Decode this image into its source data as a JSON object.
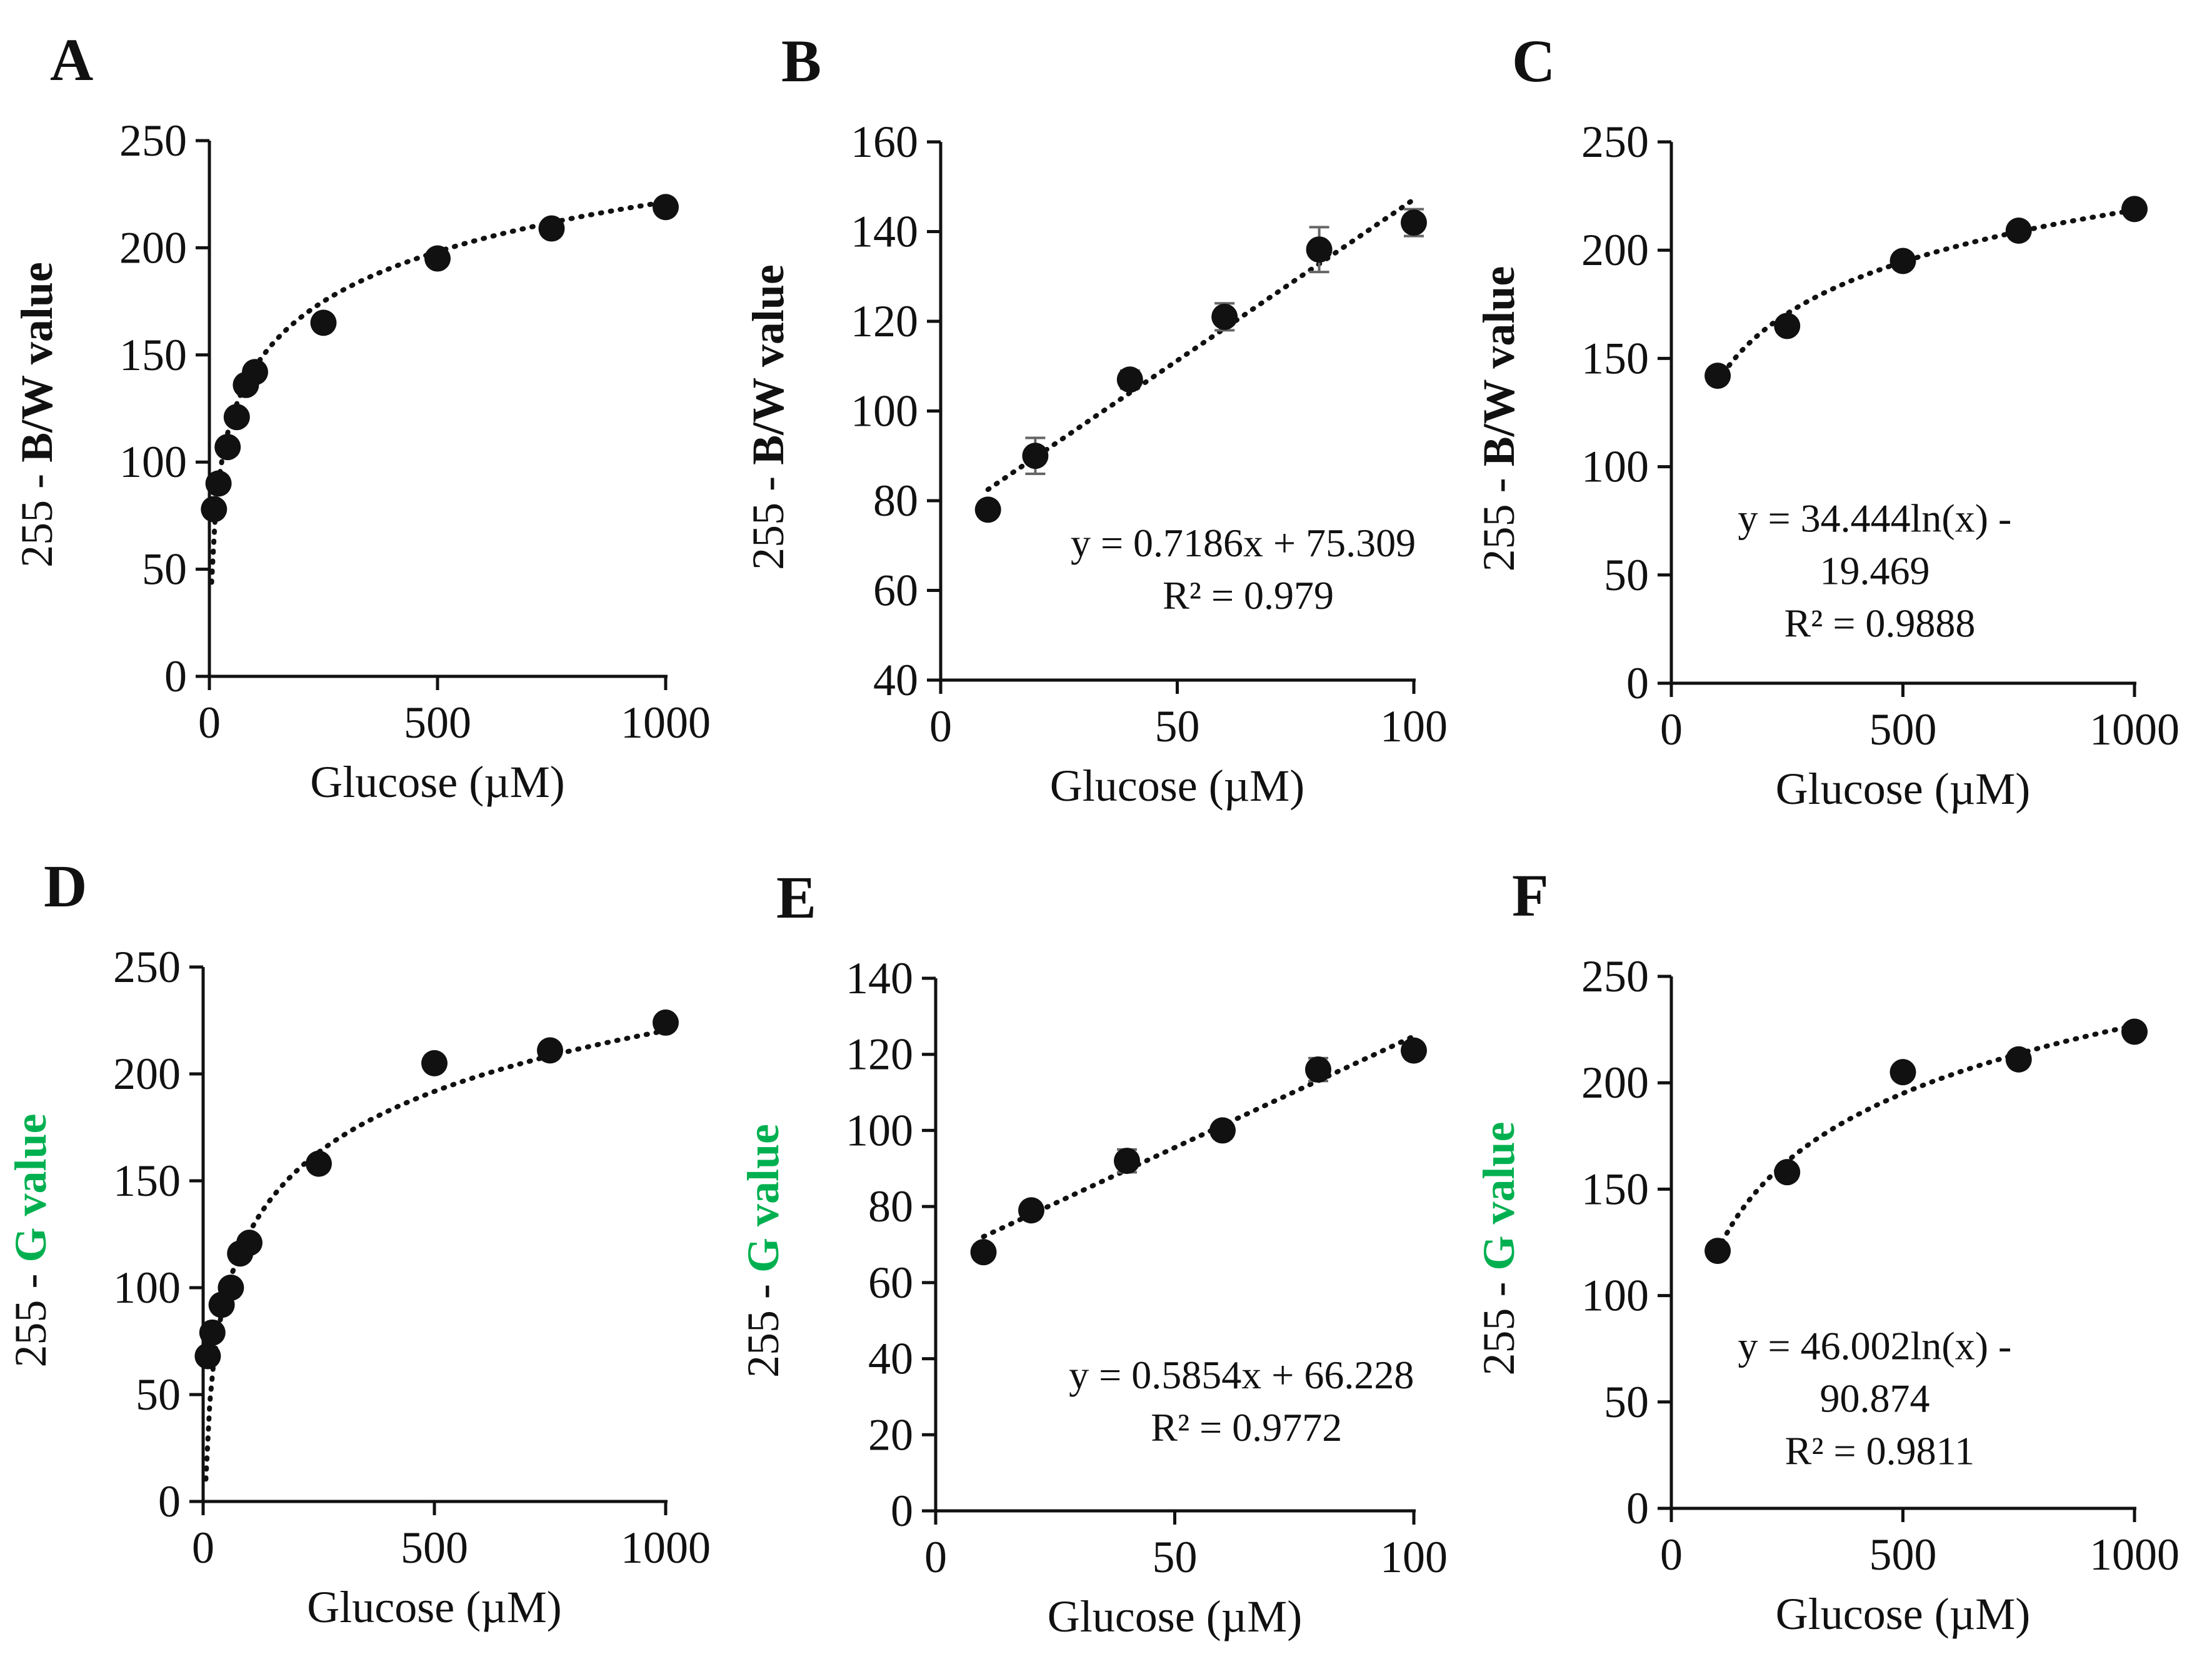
{
  "figure": {
    "colors": {
      "ink": "#111111",
      "highlight": "#00b050",
      "error_bar": "#666666"
    }
  },
  "chart_data": [
    {
      "panel": "A",
      "type": "scatter",
      "xlabel": "Glucose (µM)",
      "ylabel": {
        "prefix": "255 - ",
        "highlight": "B/W value",
        "highlight_color": "ink"
      },
      "xlim": [
        0,
        1000
      ],
      "ylim": [
        0,
        250
      ],
      "xticks": [
        0,
        500,
        1000
      ],
      "yticks": [
        0,
        50,
        100,
        150,
        200,
        250
      ],
      "points": [
        {
          "x": 10,
          "y": 78,
          "err": 0
        },
        {
          "x": 20,
          "y": 90,
          "err": 0
        },
        {
          "x": 40,
          "y": 107,
          "err": 0
        },
        {
          "x": 60,
          "y": 121,
          "err": 0
        },
        {
          "x": 80,
          "y": 136,
          "err": 0
        },
        {
          "x": 100,
          "y": 142,
          "err": 0
        },
        {
          "x": 250,
          "y": 165,
          "err": 0
        },
        {
          "x": 500,
          "y": 195,
          "err": 0
        },
        {
          "x": 750,
          "y": 209,
          "err": 0
        },
        {
          "x": 1000,
          "y": 219,
          "err": 0
        }
      ],
      "trendline": {
        "kind": "log",
        "a": 33.5,
        "b": -10,
        "x_from": 5,
        "x_to": 1000
      },
      "equation_lines": []
    },
    {
      "panel": "B",
      "type": "scatter",
      "xlabel": "Glucose (µM)",
      "ylabel": {
        "prefix": "255 - ",
        "highlight": "B/W value",
        "highlight_color": "ink"
      },
      "xlim": [
        0,
        100
      ],
      "ylim": [
        40,
        160
      ],
      "xticks": [
        0,
        50,
        100
      ],
      "yticks": [
        40,
        60,
        80,
        100,
        120,
        140,
        160
      ],
      "points": [
        {
          "x": 10,
          "y": 78,
          "err": 0
        },
        {
          "x": 20,
          "y": 90,
          "err": 4
        },
        {
          "x": 40,
          "y": 107,
          "err": 2
        },
        {
          "x": 60,
          "y": 121,
          "err": 3
        },
        {
          "x": 80,
          "y": 136,
          "err": 5
        },
        {
          "x": 100,
          "y": 142,
          "err": 3
        }
      ],
      "trendline": {
        "kind": "linear",
        "a": 0.7186,
        "b": 75.309,
        "x_from": 10,
        "x_to": 100
      },
      "equation_lines": [
        "y = 0.7186x + 75.309",
        "R² = 0.979"
      ]
    },
    {
      "panel": "C",
      "type": "scatter",
      "xlabel": "Glucose (µM)",
      "ylabel": {
        "prefix": "255 - ",
        "highlight": "B/W value",
        "highlight_color": "ink"
      },
      "xlim": [
        0,
        1000
      ],
      "ylim": [
        0,
        250
      ],
      "xticks": [
        0,
        500,
        1000
      ],
      "yticks": [
        0,
        50,
        100,
        150,
        200,
        250
      ],
      "points": [
        {
          "x": 100,
          "y": 142,
          "err": 0
        },
        {
          "x": 250,
          "y": 165,
          "err": 0
        },
        {
          "x": 500,
          "y": 195,
          "err": 0
        },
        {
          "x": 750,
          "y": 209,
          "err": 0
        },
        {
          "x": 1000,
          "y": 219,
          "err": 0
        }
      ],
      "trendline": {
        "kind": "log",
        "a": 34.444,
        "b": -19.469,
        "x_from": 100,
        "x_to": 1000
      },
      "equation_lines": [
        "y = 34.444ln(x) -",
        "19.469",
        "R² = 0.9888"
      ]
    },
    {
      "panel": "D",
      "type": "scatter",
      "xlabel": "Glucose (µM)",
      "ylabel": {
        "prefix": "255 - ",
        "highlight": "G value",
        "highlight_color": "highlight"
      },
      "xlim": [
        0,
        1000
      ],
      "ylim": [
        0,
        250
      ],
      "xticks": [
        0,
        500,
        1000
      ],
      "yticks": [
        0,
        50,
        100,
        150,
        200,
        250
      ],
      "points": [
        {
          "x": 10,
          "y": 68,
          "err": 0
        },
        {
          "x": 20,
          "y": 79,
          "err": 0
        },
        {
          "x": 40,
          "y": 92,
          "err": 0
        },
        {
          "x": 60,
          "y": 100,
          "err": 0
        },
        {
          "x": 80,
          "y": 116,
          "err": 0
        },
        {
          "x": 100,
          "y": 121,
          "err": 0
        },
        {
          "x": 250,
          "y": 158,
          "err": 0
        },
        {
          "x": 500,
          "y": 205,
          "err": 0
        },
        {
          "x": 750,
          "y": 211,
          "err": 0
        },
        {
          "x": 1000,
          "y": 224,
          "err": 0
        }
      ],
      "trendline": {
        "kind": "log",
        "a": 41,
        "b": -63,
        "x_from": 6,
        "x_to": 1000
      },
      "equation_lines": []
    },
    {
      "panel": "E",
      "type": "scatter",
      "xlabel": "Glucose (µM)",
      "ylabel": {
        "prefix": "255 - ",
        "highlight": "G value",
        "highlight_color": "highlight"
      },
      "xlim": [
        0,
        100
      ],
      "ylim": [
        0,
        140
      ],
      "xticks": [
        0,
        50,
        100
      ],
      "yticks": [
        0,
        20,
        40,
        60,
        80,
        100,
        120,
        140
      ],
      "points": [
        {
          "x": 10,
          "y": 68,
          "err": 2
        },
        {
          "x": 20,
          "y": 79,
          "err": 0
        },
        {
          "x": 40,
          "y": 92,
          "err": 3
        },
        {
          "x": 60,
          "y": 100,
          "err": 2
        },
        {
          "x": 80,
          "y": 116,
          "err": 3
        },
        {
          "x": 100,
          "y": 121,
          "err": 2
        }
      ],
      "trendline": {
        "kind": "linear",
        "a": 0.5854,
        "b": 66.228,
        "x_from": 10,
        "x_to": 100
      },
      "equation_lines": [
        "y = 0.5854x + 66.228",
        "R² = 0.9772"
      ]
    },
    {
      "panel": "F",
      "type": "scatter",
      "xlabel": "Glucose (µM)",
      "ylabel": {
        "prefix": "255 - ",
        "highlight": "G value",
        "highlight_color": "highlight"
      },
      "xlim": [
        0,
        1000
      ],
      "ylim": [
        0,
        250
      ],
      "xticks": [
        0,
        500,
        1000
      ],
      "yticks": [
        0,
        50,
        100,
        150,
        200,
        250
      ],
      "points": [
        {
          "x": 100,
          "y": 121,
          "err": 0
        },
        {
          "x": 250,
          "y": 158,
          "err": 0
        },
        {
          "x": 500,
          "y": 205,
          "err": 0
        },
        {
          "x": 750,
          "y": 211,
          "err": 0
        },
        {
          "x": 1000,
          "y": 224,
          "err": 0
        }
      ],
      "trendline": {
        "kind": "log",
        "a": 46.002,
        "b": -90.874,
        "x_from": 100,
        "x_to": 1000
      },
      "equation_lines": [
        "y = 46.002ln(x) -",
        "90.874",
        "R² = 0.9811"
      ]
    }
  ]
}
